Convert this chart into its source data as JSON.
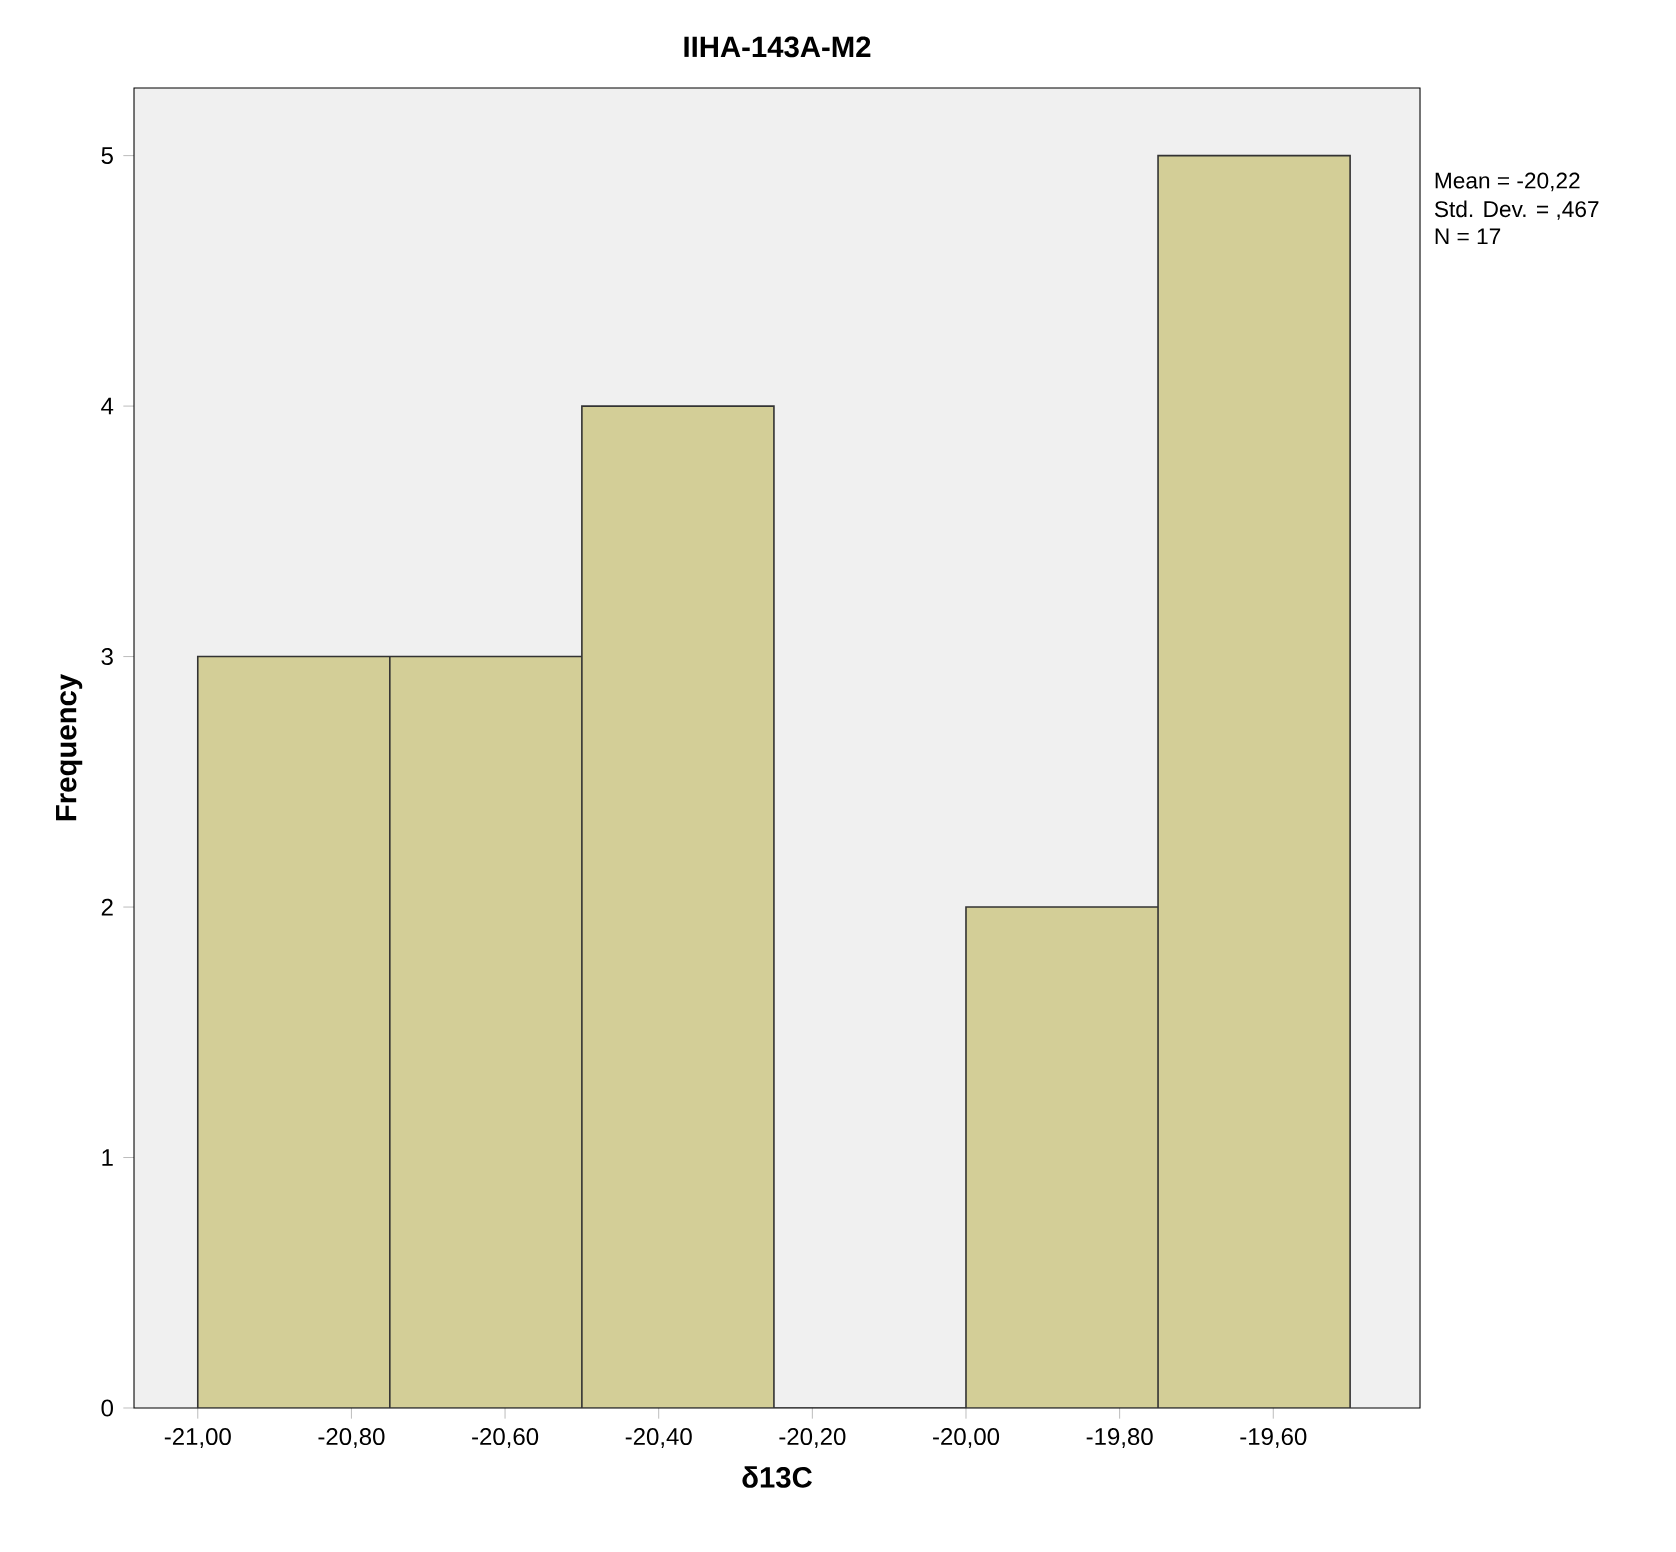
{
  "chart_data": {
    "type": "histogram",
    "title": "IIHA-143A-M2",
    "xlabel": "δ13C",
    "ylabel": "Frequency",
    "bins": [
      -21.0,
      -20.75,
      -20.5,
      -20.25,
      -20.0,
      -19.75,
      -19.5
    ],
    "values": [
      3,
      3,
      4,
      0,
      2,
      5
    ],
    "color": "#d3ce97",
    "xlim": [
      -21.083,
      -19.409
    ],
    "ylim": [
      0,
      5.27
    ],
    "xticks": [
      {
        "value": -21.0,
        "label": "-21,00"
      },
      {
        "value": -20.8,
        "label": "-20,80"
      },
      {
        "value": -20.6,
        "label": "-20,60"
      },
      {
        "value": -20.4,
        "label": "-20,40"
      },
      {
        "value": -20.2,
        "label": "-20,20"
      },
      {
        "value": -20.0,
        "label": "-20,00"
      },
      {
        "value": -19.8,
        "label": "-19,80"
      },
      {
        "value": -19.6,
        "label": "-19,60"
      }
    ],
    "yticks": [
      0,
      1,
      2,
      3,
      4,
      5
    ],
    "annotations": [
      "Mean = -20,22",
      "Std. Dev. = ,467",
      "N = 17"
    ]
  }
}
